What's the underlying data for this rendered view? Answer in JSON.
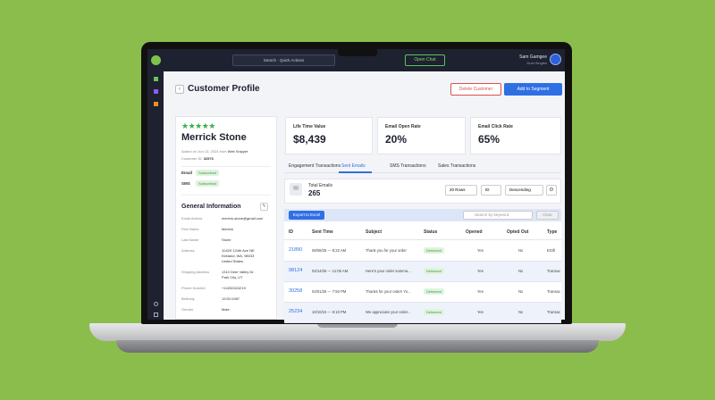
{
  "topbar": {
    "search": "Search · Quick Actions",
    "chat_button": "Open Chat",
    "user_name": "Sam Gamgee",
    "user_org": "Dust Singles"
  },
  "header": {
    "title": "Customer Profile",
    "delete_button": "Delete Customer",
    "segment_button": "Add to Segment"
  },
  "profile": {
    "name": "Merrick Stone",
    "added": "Added on Jun 13, 2024 from",
    "source": "Web Snippet",
    "customer_id_label": "Customer ID:",
    "customer_id": "32576",
    "subscriptions": [
      {
        "label": "Email",
        "status": "Subscribed"
      },
      {
        "label": "SMS",
        "status": "Subscribed"
      }
    ],
    "general_title": "General Information",
    "fields": [
      {
        "label": "Email Adress",
        "value": "merrick.stone@gmail.com"
      },
      {
        "label": "First Name",
        "value": "Merrick"
      },
      {
        "label": "Last Name",
        "value": "Stone"
      },
      {
        "label": "Address",
        "value": "10429 124th Ave NE\nKirkland, WA, 98033\nUnited States"
      },
      {
        "label": "Shipping Address",
        "value": "1310 Deer Valley Dr.\nPark City, UT"
      },
      {
        "label": "Phone Number",
        "value": "+14252424219"
      },
      {
        "label": "Birthday",
        "value": "12/31/1987"
      },
      {
        "label": "Gender",
        "value": "Male"
      }
    ]
  },
  "metrics": [
    {
      "label": "Life Time Value",
      "value": "$8,439"
    },
    {
      "label": "Email Open Rate",
      "value": "20%"
    },
    {
      "label": "Email Click Rate",
      "value": "65%"
    }
  ],
  "tabs": [
    "Engagement Transactions",
    "Sent Emails",
    "SMS Transactions",
    "Sales Transactions"
  ],
  "summary": {
    "label": "Total Emails",
    "value": "265",
    "rows_select": "20 Rows",
    "sort_field": "ID",
    "sort_order": "Descending"
  },
  "toolbar": {
    "export": "Export to Excel",
    "search": "Search by keyword",
    "clear": "Clear"
  },
  "table": {
    "columns": [
      "ID",
      "Sent Time",
      "Subject",
      "Status",
      "Opened",
      "Opted Out",
      "Type"
    ],
    "rows": [
      [
        "21890",
        "08/08/25 --- 8:22 AM",
        "Thank you for your order",
        "Delivered",
        "Yes",
        "No",
        "EGift"
      ],
      [
        "98124",
        "02/14/26 --- 11:05 AM",
        "Here's your order summa...",
        "Delivered",
        "Yes",
        "No",
        "Transac"
      ],
      [
        "30258",
        "04/01/26 --- 7:50 PM",
        "Thanks for your order! Yo...",
        "Delivered",
        "Yes",
        "No",
        "Transac"
      ],
      [
        "25234",
        "10/10/24 --- 8:10 PM",
        "We appreciate your order...",
        "Delivered",
        "Yes",
        "No",
        "Transac"
      ]
    ]
  }
}
